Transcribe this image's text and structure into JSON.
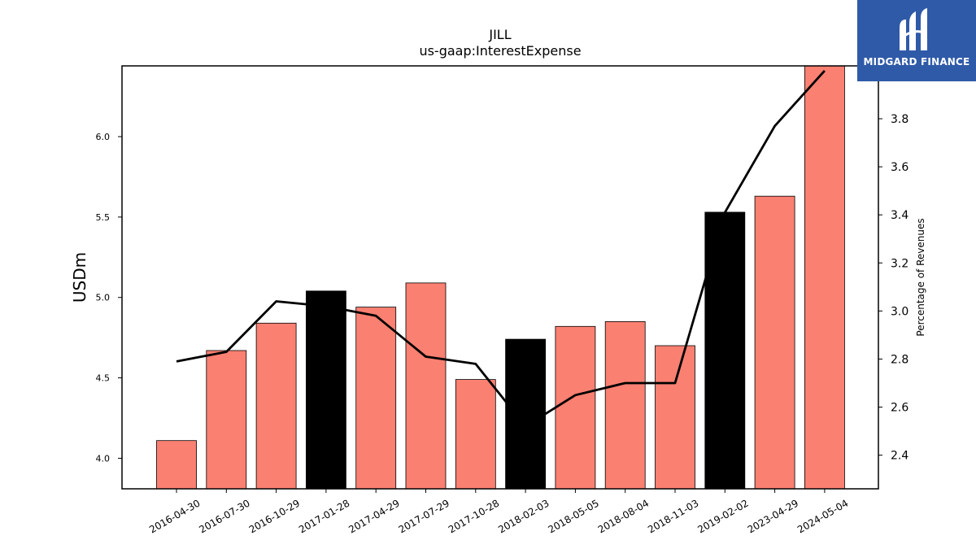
{
  "chart_data": {
    "type": "bar+line",
    "title": "JILL",
    "subtitle": "us-gaap:InterestExpense",
    "ylabel": "USDm",
    "y2label": "Percentage of Revenues",
    "categories": [
      "2016-04-30",
      "2016-07-30",
      "2016-10-29",
      "2017-01-28",
      "2017-04-29",
      "2017-07-29",
      "2017-10-28",
      "2018-02-03",
      "2018-05-05",
      "2018-08-04",
      "2018-11-03",
      "2019-02-02",
      "2023-04-29",
      "2024-05-04"
    ],
    "bar_values": [
      4.11,
      4.67,
      4.84,
      5.04,
      4.94,
      5.09,
      4.49,
      4.74,
      4.82,
      4.85,
      4.7,
      5.53,
      5.63,
      6.44
    ],
    "bar_highlight": [
      false,
      false,
      false,
      true,
      false,
      false,
      false,
      true,
      false,
      false,
      false,
      true,
      false,
      false
    ],
    "line_values": [
      2.79,
      2.83,
      3.04,
      3.02,
      2.98,
      2.81,
      2.78,
      2.52,
      2.65,
      2.7,
      2.7,
      3.41,
      3.77,
      4.0
    ],
    "ylim": [
      3.81,
      6.44
    ],
    "y2lim": [
      2.26,
      4.02
    ],
    "yticks": [
      4.0,
      4.5,
      5.0,
      5.5,
      6.0
    ],
    "y2ticks": [
      2.4,
      2.6,
      2.8,
      3.0,
      3.2,
      3.4,
      3.6,
      3.8
    ],
    "colors": {
      "bar": "#fa8072",
      "bar_highlight": "#000000",
      "line": "#000000"
    }
  },
  "logo": {
    "text": "MIDGARD FINANCE",
    "background": "#2f5aa8"
  }
}
